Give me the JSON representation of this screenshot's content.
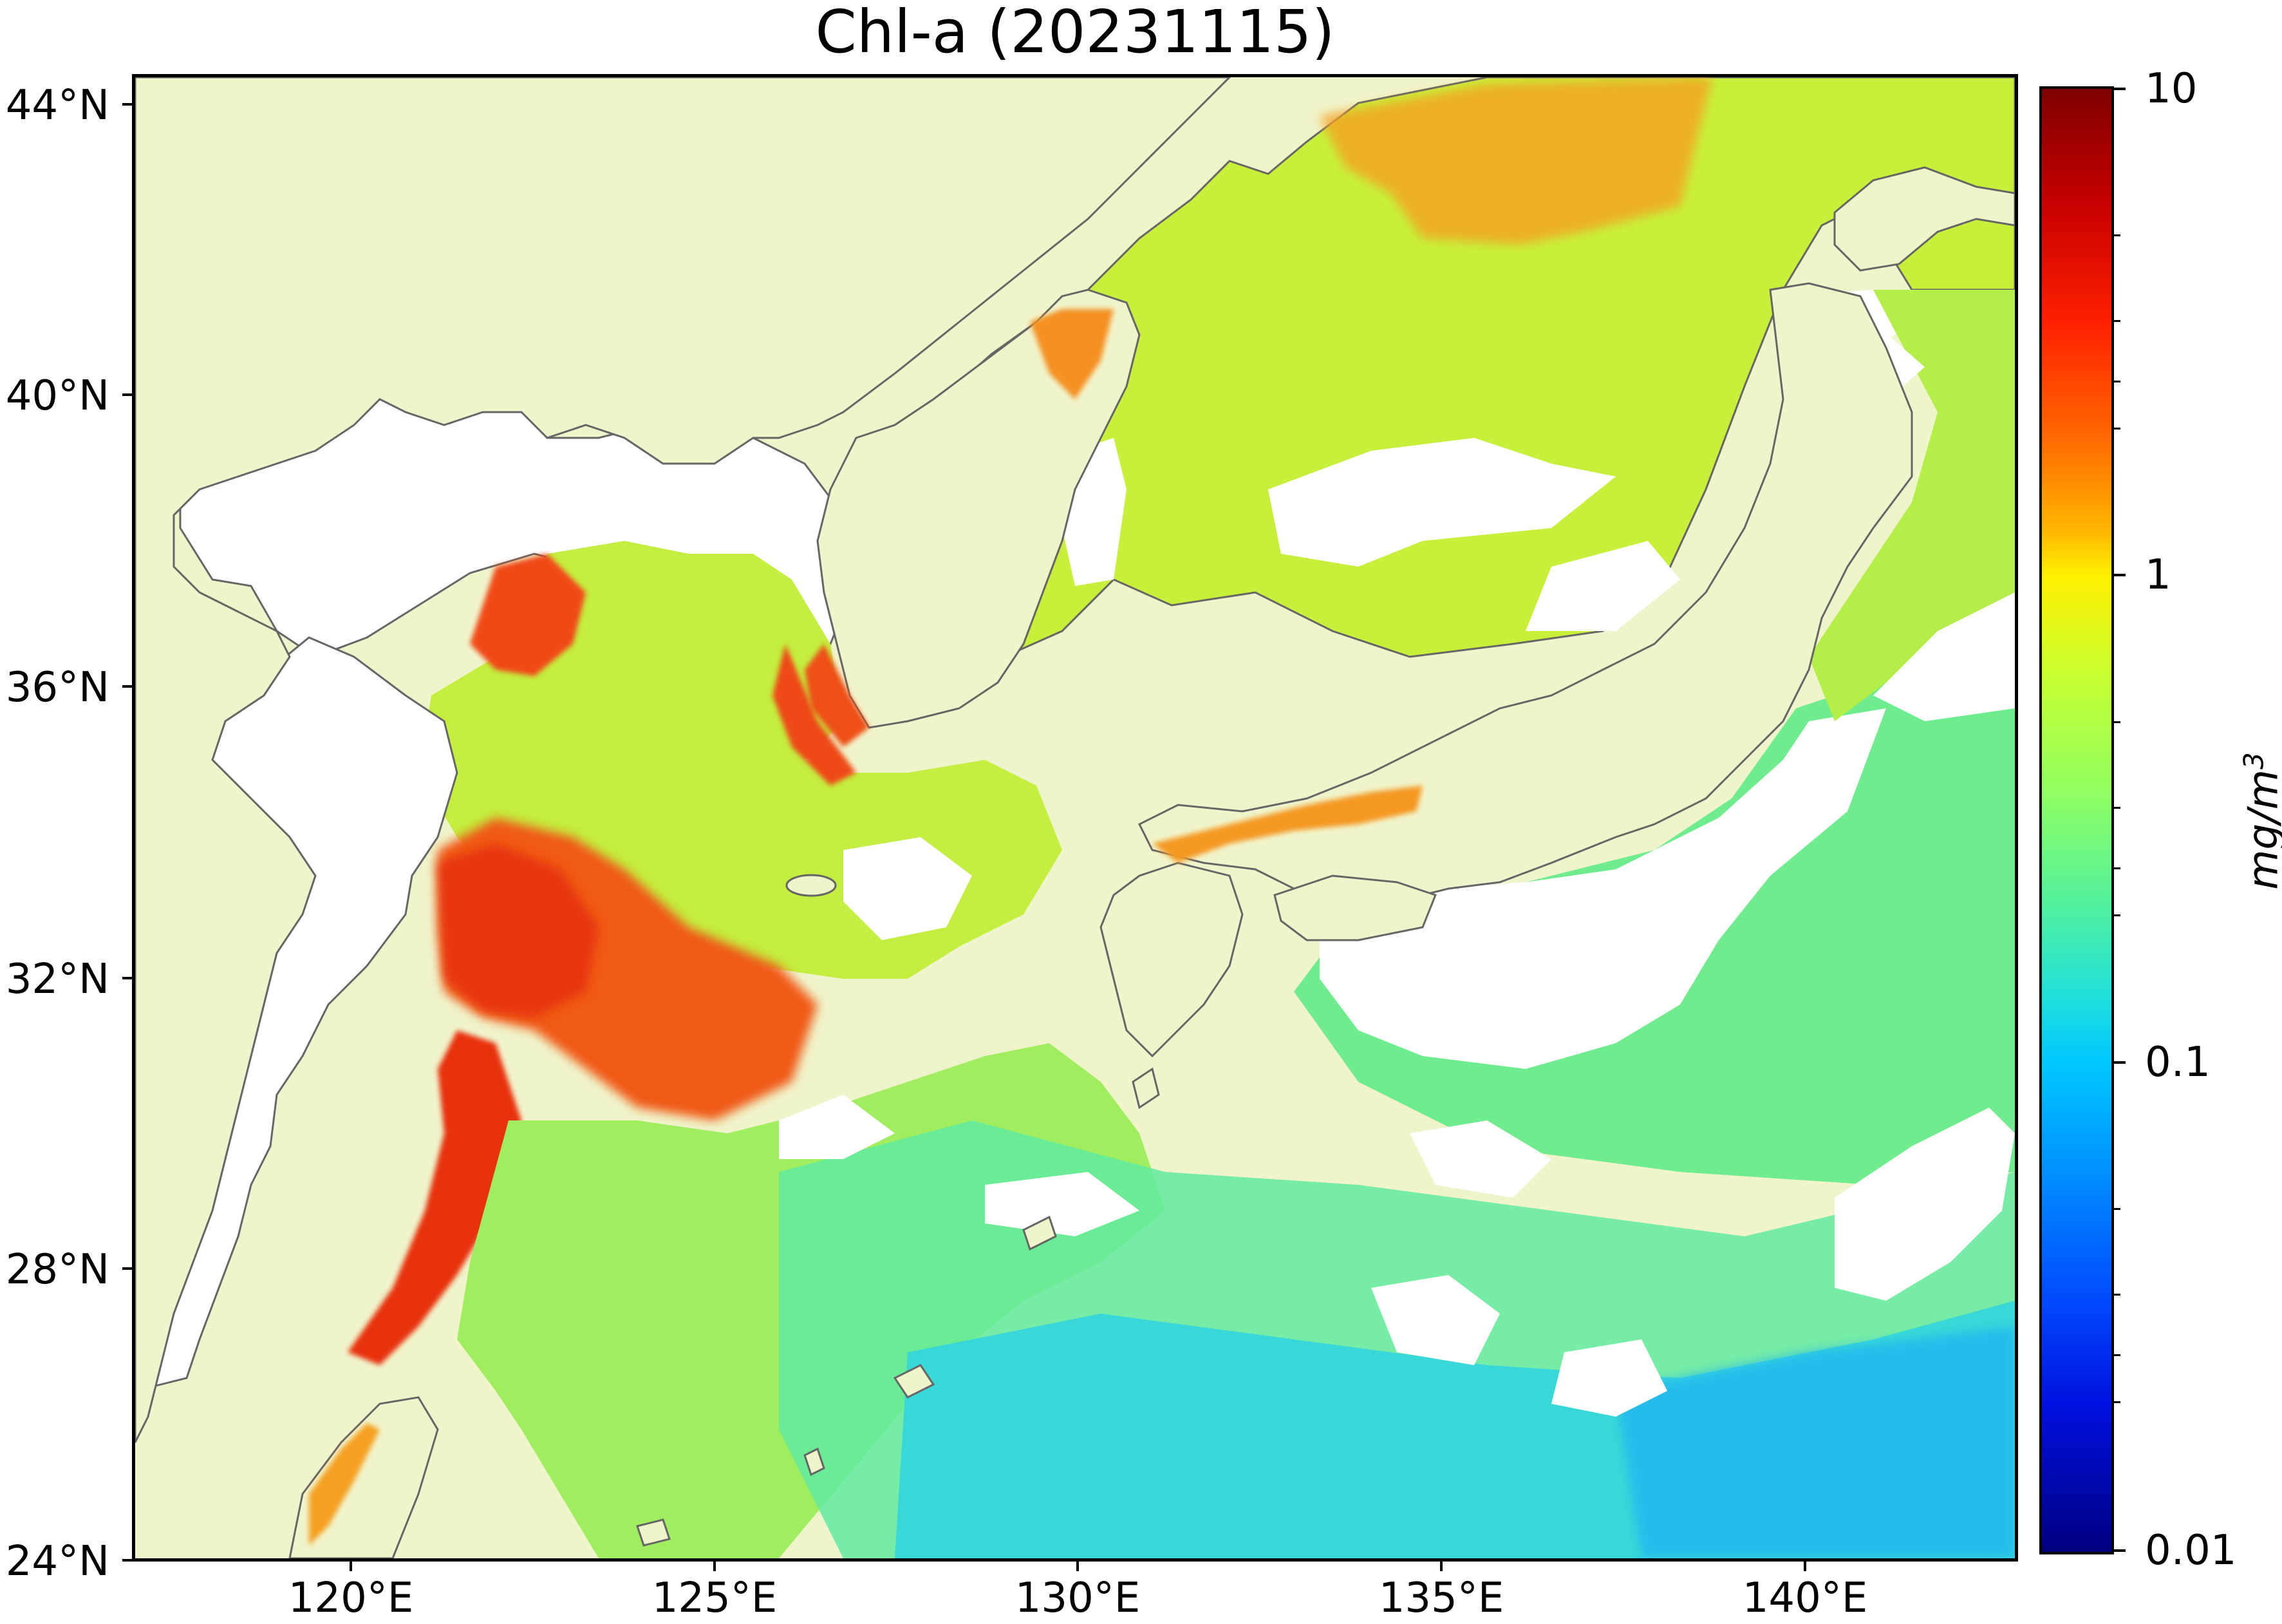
{
  "title": "Chl-a (20231115)",
  "axes": {
    "lat_labels": [
      "44°N",
      "40°N",
      "36°N",
      "32°N",
      "28°N",
      "24°N"
    ],
    "lon_labels": [
      "120°E",
      "125°E",
      "130°E",
      "135°E",
      "140°E"
    ]
  },
  "colorbar": {
    "unit": "mg/m3",
    "tick_labels": [
      "10",
      "1",
      "0.1",
      "0.01"
    ],
    "scale": "log",
    "range": [
      0.01,
      10
    ],
    "colormap": "jet"
  },
  "colors": {
    "land": "#f0f4cb",
    "no_data": "#ffffff",
    "coastline": "#666666"
  }
}
